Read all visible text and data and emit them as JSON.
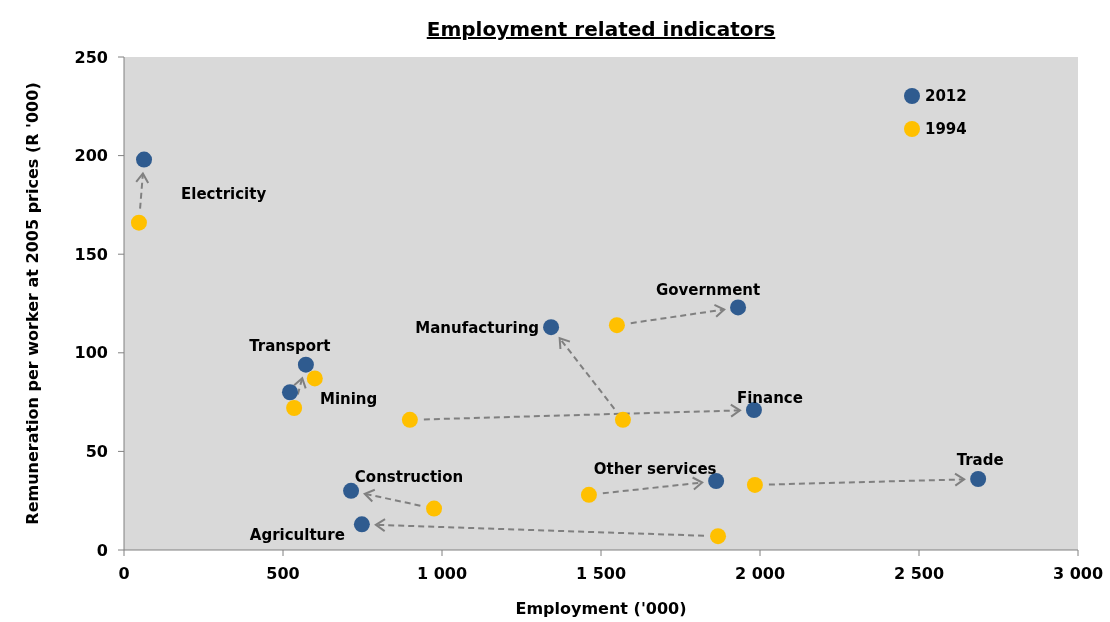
{
  "chart_data": {
    "type": "scatter",
    "title": "Employment related indicators",
    "xlabel": "Employment ('000)",
    "ylabel": "Remuneration per worker at 2005 prices (R '000)",
    "xlim": [
      0,
      3000
    ],
    "xticks": [
      0,
      {
        "value": 500,
        "label": "500"
      },
      {
        "value": 1000,
        "label": "1 000"
      },
      {
        "value": 1500,
        "label": "1 500"
      },
      {
        "value": 2000,
        "label": "2 000"
      },
      {
        "value": 2500,
        "label": "2 500"
      },
      {
        "value": 3000,
        "label": "3 000"
      }
    ],
    "ylim": [
      0,
      250
    ],
    "yticks": [
      0,
      50,
      100,
      150,
      200,
      250
    ],
    "grid": false,
    "legend": "top right",
    "marker": "circle",
    "series": [
      {
        "name": "2012",
        "color": "#2f5b8f",
        "x": [
          63,
          1931,
          1343,
          572,
          522,
          1981,
          714,
          748,
          1862,
          2686
        ],
        "values": [
          198,
          123,
          113,
          94,
          80,
          71,
          30,
          13,
          35,
          36
        ]
      },
      {
        "name": "1994",
        "color": "#ffc000",
        "x": [
          47,
          1550,
          1569,
          535,
          600,
          899,
          975,
          1868,
          1462,
          1984
        ],
        "values": [
          166,
          114,
          66,
          72,
          87,
          66,
          21,
          7,
          28,
          33
        ]
      }
    ],
    "annotations": [
      {
        "text": "Electricity",
        "x": 63,
        "y": 198
      },
      {
        "text": "Government",
        "x": 1931,
        "y": 123
      },
      {
        "text": "Manufacturing",
        "x": 1343,
        "y": 113
      },
      {
        "text": "Transport",
        "x": 572,
        "y": 94
      },
      {
        "text": "Mining",
        "x": 522,
        "y": 80
      },
      {
        "text": "Finance",
        "x": 1981,
        "y": 71
      },
      {
        "text": "Construction",
        "x": 714,
        "y": 30
      },
      {
        "text": "Agriculture",
        "x": 748,
        "y": 13
      },
      {
        "text": "Other services",
        "x": 1862,
        "y": 35
      },
      {
        "text": "Trade",
        "x": 2686,
        "y": 36
      }
    ]
  }
}
